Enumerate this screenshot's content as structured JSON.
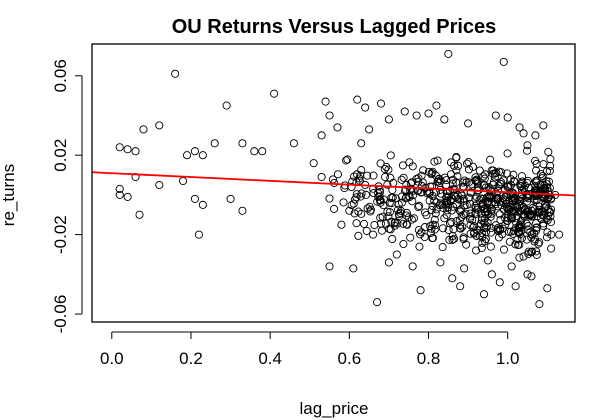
{
  "chart_data": {
    "type": "scatter",
    "title": "OU Returns Versus Lagged Prices",
    "xlabel": "lag_price",
    "ylabel": "re_turns",
    "xlim": [
      -0.05,
      1.17
    ],
    "ylim": [
      -0.064,
      0.076
    ],
    "xticks": [
      0.0,
      0.2,
      0.4,
      0.6,
      0.8,
      1.0
    ],
    "xtick_labels": [
      "0.0",
      "0.2",
      "0.4",
      "0.6",
      "0.8",
      "1.0"
    ],
    "yticks": [
      -0.06,
      -0.02,
      0.02,
      0.06
    ],
    "ytick_labels": [
      "-0.06",
      "-0.02",
      "0.02",
      "0.06"
    ],
    "grid": false,
    "point_color": "#000000",
    "regression_line": {
      "color": "#ff0000",
      "x": [
        -0.05,
        1.17
      ],
      "y": [
        0.0114,
        -0.0003
      ]
    },
    "points": [
      [
        0.16,
        0.061
      ],
      [
        0.41,
        0.051
      ],
      [
        0.85,
        0.071
      ],
      [
        0.99,
        0.067
      ],
      [
        0.29,
        0.045
      ],
      [
        0.12,
        0.035
      ],
      [
        0.08,
        0.033
      ],
      [
        0.02,
        0.024
      ],
      [
        0.04,
        0.023
      ],
      [
        0.06,
        0.022
      ],
      [
        0.19,
        0.02
      ],
      [
        0.21,
        0.022
      ],
      [
        0.23,
        0.02
      ],
      [
        0.26,
        0.026
      ],
      [
        0.33,
        0.026
      ],
      [
        0.36,
        0.022
      ],
      [
        0.38,
        0.022
      ],
      [
        0.02,
        0.003
      ],
      [
        0.02,
        0.0
      ],
      [
        0.04,
        -0.001
      ],
      [
        0.06,
        0.009
      ],
      [
        0.07,
        -0.01
      ],
      [
        0.12,
        0.005
      ],
      [
        0.18,
        0.007
      ],
      [
        0.21,
        -0.002
      ],
      [
        0.22,
        -0.02
      ],
      [
        0.23,
        -0.005
      ],
      [
        0.3,
        -0.002
      ],
      [
        0.33,
        -0.008
      ],
      [
        0.46,
        0.026
      ],
      [
        0.51,
        0.016
      ],
      [
        0.53,
        0.009
      ],
      [
        0.54,
        0.047
      ],
      [
        0.55,
        0.04
      ],
      [
        0.53,
        0.03
      ],
      [
        0.57,
        0.034
      ],
      [
        0.58,
        -0.015
      ],
      [
        0.6,
        -0.008
      ],
      [
        0.62,
        0.048
      ],
      [
        0.64,
        0.044
      ],
      [
        0.63,
        0.026
      ],
      [
        0.65,
        0.033
      ],
      [
        0.66,
        -0.02
      ],
      [
        0.67,
        -0.054
      ],
      [
        0.68,
        0.046
      ],
      [
        0.7,
        0.038
      ],
      [
        0.72,
        -0.03
      ],
      [
        0.74,
        0.042
      ],
      [
        0.76,
        -0.036
      ],
      [
        0.77,
        0.04
      ],
      [
        0.78,
        -0.048
      ],
      [
        0.8,
        0.041
      ],
      [
        0.82,
        0.045
      ],
      [
        0.83,
        -0.034
      ],
      [
        0.84,
        0.038
      ],
      [
        0.86,
        -0.042
      ],
      [
        0.88,
        -0.046
      ],
      [
        0.9,
        0.036
      ],
      [
        0.92,
        -0.028
      ],
      [
        0.94,
        -0.05
      ],
      [
        0.96,
        -0.04
      ],
      [
        0.97,
        0.04
      ],
      [
        0.98,
        -0.044
      ],
      [
        1.0,
        0.039
      ],
      [
        1.02,
        -0.046
      ],
      [
        1.04,
        -0.031
      ],
      [
        1.06,
        -0.041
      ],
      [
        1.08,
        -0.055
      ],
      [
        1.1,
        -0.047
      ],
      [
        1.11,
        -0.02
      ],
      [
        1.12,
        0.0
      ],
      [
        1.13,
        -0.02
      ],
      [
        1.09,
        0.035
      ],
      [
        1.07,
        0.03
      ],
      [
        1.05,
        0.025
      ],
      [
        1.03,
        0.034
      ],
      [
        0.55,
        -0.036
      ],
      [
        0.61,
        -0.037
      ],
      [
        0.7,
        -0.034
      ],
      [
        0.89,
        -0.037
      ],
      [
        0.95,
        -0.033
      ],
      [
        1.01,
        -0.036
      ],
      [
        1.04,
        0.031
      ],
      [
        1.05,
        -0.04
      ]
    ],
    "cloud_seed": 17,
    "cloud_count": 640
  }
}
